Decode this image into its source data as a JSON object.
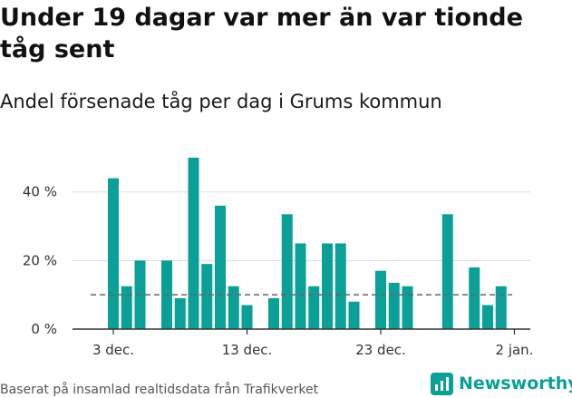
{
  "title": "Under 19 dagar var mer än var tionde tåg sent",
  "subtitle": "Andel försenade tåg per dag i Grums kommun",
  "source": "Baserat på insamlad realtidsdata från Trafikverket",
  "brand": "Newsworthy",
  "colors": {
    "bar": "#0aa098",
    "grid": "#dddddd",
    "axis": "#333333",
    "reference_line": "#666666",
    "brand": "#0aa098"
  },
  "chart_data": {
    "type": "bar",
    "title": "Andel försenade tåg per dag i Grums kommun",
    "xlabel": "",
    "ylabel": "",
    "ylim": [
      0,
      55
    ],
    "yticks": [
      {
        "value": 0,
        "label": "0 %"
      },
      {
        "value": 20,
        "label": "20 %"
      },
      {
        "value": 40,
        "label": "40 %"
      }
    ],
    "xrange": [
      -2,
      32
    ],
    "xticks": [
      {
        "day": 0,
        "label": "3 dec."
      },
      {
        "day": 10,
        "label": "13 dec."
      },
      {
        "day": 20,
        "label": "23 dec."
      },
      {
        "day": 30,
        "label": "2 jan."
      }
    ],
    "reference_line": 10,
    "series": [
      {
        "name": "Andel försenade tåg",
        "values": [
          {
            "day": 0,
            "value": 44
          },
          {
            "day": 1,
            "value": 12.5
          },
          {
            "day": 2,
            "value": 20
          },
          {
            "day": 4,
            "value": 20
          },
          {
            "day": 5,
            "value": 9
          },
          {
            "day": 6,
            "value": 50
          },
          {
            "day": 7,
            "value": 19
          },
          {
            "day": 8,
            "value": 36
          },
          {
            "day": 9,
            "value": 12.5
          },
          {
            "day": 10,
            "value": 7
          },
          {
            "day": 12,
            "value": 9
          },
          {
            "day": 13,
            "value": 33.5
          },
          {
            "day": 14,
            "value": 25
          },
          {
            "day": 15,
            "value": 12.5
          },
          {
            "day": 16,
            "value": 25
          },
          {
            "day": 17,
            "value": 25
          },
          {
            "day": 18,
            "value": 8
          },
          {
            "day": 20,
            "value": 17
          },
          {
            "day": 21,
            "value": 13.5
          },
          {
            "day": 22,
            "value": 12.5
          },
          {
            "day": 25,
            "value": 33.5
          },
          {
            "day": 27,
            "value": 18
          },
          {
            "day": 28,
            "value": 7
          },
          {
            "day": 29,
            "value": 12.5
          }
        ]
      }
    ]
  }
}
